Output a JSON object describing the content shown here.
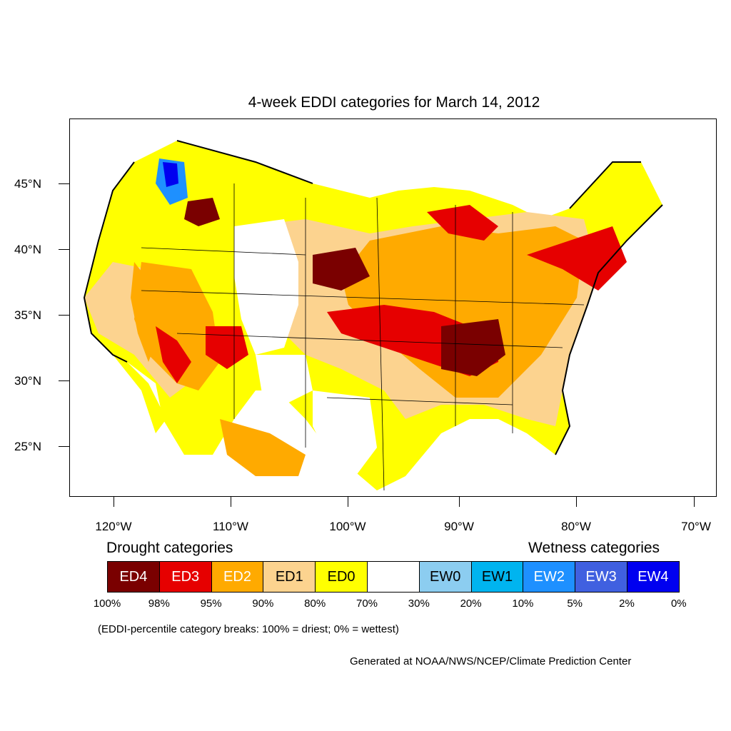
{
  "title": "4-week EDDI categories for March 14, 2012",
  "latitude_labels": [
    "45°N",
    "40°N",
    "35°N",
    "30°N",
    "25°N"
  ],
  "longitude_labels": [
    "120°W",
    "110°W",
    "100°W",
    "90°W",
    "80°W",
    "70°W"
  ],
  "legend": {
    "drought_heading": "Drought categories",
    "wetness_heading": "Wetness categories",
    "categories": [
      {
        "label": "ED4",
        "color": "#7a0000",
        "text_color": "#ffffff"
      },
      {
        "label": "ED3",
        "color": "#e60000",
        "text_color": "#ffffff"
      },
      {
        "label": "ED2",
        "color": "#ffaa00",
        "text_color": "#ffffff"
      },
      {
        "label": "ED1",
        "color": "#fcd38f",
        "text_color": "#000000"
      },
      {
        "label": "ED0",
        "color": "#ffff00",
        "text_color": "#000000"
      },
      {
        "label": "",
        "color": "#ffffff",
        "text_color": "#000000"
      },
      {
        "label": "EW0",
        "color": "#8ccdf0",
        "text_color": "#000000"
      },
      {
        "label": "EW1",
        "color": "#00b4ef",
        "text_color": "#000000"
      },
      {
        "label": "EW2",
        "color": "#1e90ff",
        "text_color": "#ffffff"
      },
      {
        "label": "EW3",
        "color": "#4060e0",
        "text_color": "#ffffff"
      },
      {
        "label": "EW4",
        "color": "#0000f0",
        "text_color": "#ffffff"
      }
    ],
    "breaks": [
      "100%",
      "98%",
      "95%",
      "90%",
      "80%",
      "70%",
      "30%",
      "20%",
      "10%",
      "5%",
      "2%",
      "0%"
    ]
  },
  "note": "(EDDI-percentile category breaks: 100% = driest; 0% = wettest)",
  "credit": "Generated at NOAA/NWS/NCEP/Climate Prediction Center"
}
